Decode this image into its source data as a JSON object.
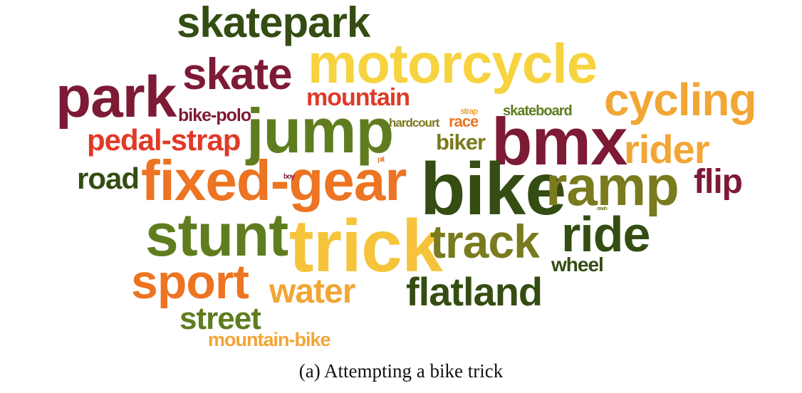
{
  "colors": {
    "dark_green": "#344d12",
    "olive_green": "#5f7d1f",
    "olive": "#7a7a1e",
    "maroon": "#7d1a36",
    "red_orange": "#e03a27",
    "orange": "#ec7422",
    "light_orange": "#f2a635",
    "yellow": "#f6d33f"
  },
  "words": [
    {
      "text": "skatepark",
      "color": "#344d12"
    },
    {
      "text": "motorcycle",
      "color": "#f6d33f"
    },
    {
      "text": "skate",
      "color": "#7d1a36"
    },
    {
      "text": "park",
      "color": "#7d1a36"
    },
    {
      "text": "mountain",
      "color": "#e03a27"
    },
    {
      "text": "cycling",
      "color": "#f2a635"
    },
    {
      "text": "jump",
      "color": "#5f7d1f"
    },
    {
      "text": "bike-polo",
      "color": "#7d1a36"
    },
    {
      "text": "hardcourt",
      "color": "#7a7a1e"
    },
    {
      "text": "strap",
      "color": "#f2a635"
    },
    {
      "text": "race",
      "color": "#ec7422"
    },
    {
      "text": "skateboard",
      "color": "#5f7d1f"
    },
    {
      "text": "pedal-strap",
      "color": "#e03a27"
    },
    {
      "text": "bmx",
      "color": "#7d1a36"
    },
    {
      "text": "biker",
      "color": "#7a7a1e"
    },
    {
      "text": "rider",
      "color": "#f2a635"
    },
    {
      "text": "pit",
      "color": "#ec7422"
    },
    {
      "text": "road",
      "color": "#344d12"
    },
    {
      "text": "fixed-gear",
      "color": "#ec7422"
    },
    {
      "text": "boy",
      "color": "#7d1a36"
    },
    {
      "text": "bike",
      "color": "#344d12"
    },
    {
      "text": "ramp",
      "color": "#7a7a1e"
    },
    {
      "text": "flip",
      "color": "#7d1a36"
    },
    {
      "text": "crash",
      "color": "#7a7a1e"
    },
    {
      "text": "stunt",
      "color": "#5f7d1f"
    },
    {
      "text": "trick",
      "color": "#f6c43a"
    },
    {
      "text": "track",
      "color": "#7a7a1e"
    },
    {
      "text": "ride",
      "color": "#344d12"
    },
    {
      "text": "wheel",
      "color": "#344d12"
    },
    {
      "text": "sport",
      "color": "#ec7422"
    },
    {
      "text": "water",
      "color": "#f2a635"
    },
    {
      "text": "flatland",
      "color": "#344d12"
    },
    {
      "text": "street",
      "color": "#5f7d1f"
    },
    {
      "text": "mountain-bike",
      "color": "#f2a635"
    }
  ],
  "caption": "(a)  Attempting a bike trick"
}
